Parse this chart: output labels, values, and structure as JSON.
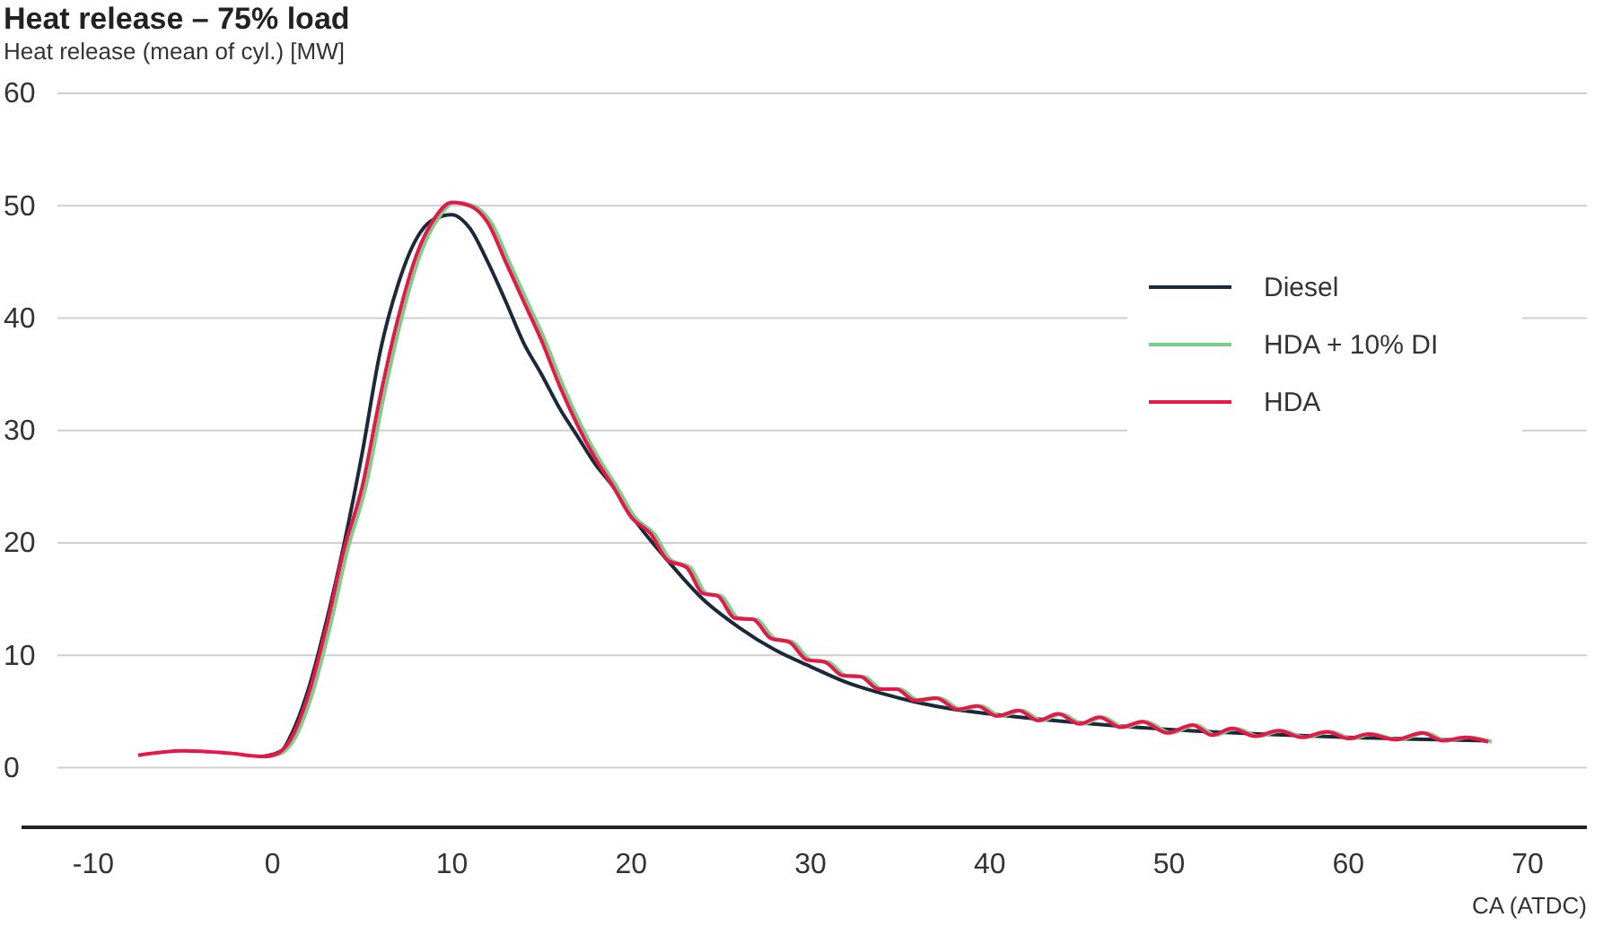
{
  "chart_data": {
    "type": "line",
    "title": "Heat release – 75% load",
    "ylabel": "Heat release (mean of cyl.) [MW]",
    "xlabel": "CA (ATDC)",
    "xlim": [
      -14,
      73.3
    ],
    "xticks": [
      -10,
      0,
      10,
      20,
      30,
      40,
      50,
      60,
      70
    ],
    "ylim": [
      -5.3,
      60
    ],
    "yticks": [
      0,
      10,
      20,
      30,
      40,
      50,
      60
    ],
    "grid": "y",
    "legend": "right",
    "line_style": "solid",
    "marker": "none",
    "series": [
      {
        "name": "Diesel",
        "color": "#1b2a3a",
        "x": [
          -0.5,
          0.5,
          1,
          2,
          3,
          4,
          5,
          6,
          7,
          8,
          9,
          10,
          11,
          12,
          13,
          14,
          15,
          16,
          17,
          18,
          19,
          20,
          22,
          24,
          26,
          28,
          30,
          32,
          34,
          36,
          38,
          40,
          45,
          50,
          55,
          60,
          65,
          67.8
        ],
        "values": [
          1.0,
          1.5,
          2.8,
          7,
          13,
          20,
          28,
          37,
          43,
          47,
          48.8,
          49.2,
          48,
          45,
          41.5,
          37.8,
          35,
          32,
          29.5,
          27,
          25,
          22.5,
          18.5,
          15,
          12.5,
          10.5,
          9,
          7.6,
          6.6,
          5.8,
          5.2,
          4.8,
          4,
          3.4,
          3,
          2.7,
          2.5,
          2.4
        ]
      },
      {
        "name": "HDA + 10% DI",
        "color": "#7dcc8a",
        "x": [
          -0.3,
          0.5,
          1.2,
          2.2,
          3.2,
          4.2,
          5.2,
          6.2,
          7.2,
          8.2,
          9.2,
          10.2,
          11.2,
          12.2,
          13.2,
          14.2,
          15.2,
          16.2,
          17.2,
          18.2,
          19.2,
          20.2,
          21.3,
          22.2,
          23.3,
          24.2,
          25,
          26,
          27,
          28,
          29,
          30,
          31,
          32,
          33,
          34,
          35,
          36,
          37.2,
          38.4,
          39.5,
          40.6,
          41.8,
          42.9,
          44,
          45.2,
          46.3,
          47.5,
          48.7,
          50.1,
          51.5,
          52.6,
          53.7,
          55,
          56.3,
          57.6,
          59,
          60.2,
          61.3,
          62.8,
          64.3,
          65.5,
          66.7,
          68
        ],
        "values": [
          1.0,
          1.3,
          2.5,
          6.5,
          12.5,
          19.5,
          25,
          33,
          40,
          45.5,
          48.8,
          50.3,
          50,
          48.5,
          45,
          41.5,
          38,
          34,
          30.5,
          27.5,
          25,
          22.3,
          20.8,
          18.5,
          17.8,
          15.5,
          15.3,
          13.3,
          13.2,
          11.5,
          11.2,
          9.6,
          9.4,
          8.2,
          8.1,
          7.0,
          7.0,
          6.0,
          6.2,
          5.2,
          5.5,
          4.6,
          5.1,
          4.2,
          4.8,
          3.9,
          4.5,
          3.6,
          4.1,
          3.1,
          3.8,
          2.9,
          3.5,
          2.8,
          3.3,
          2.7,
          3.2,
          2.6,
          3.0,
          2.5,
          3.1,
          2.4,
          2.7,
          2.3
        ]
      },
      {
        "name": "HDA",
        "color": "#e8174a",
        "x": [
          -7.5,
          -5,
          -2.5,
          -0.5,
          0.3,
          1,
          2,
          3,
          4,
          5,
          6,
          7,
          8,
          9,
          10,
          11,
          12,
          13,
          14,
          15,
          16,
          17,
          18,
          19,
          20,
          21.1,
          22,
          23.1,
          24,
          24.8,
          25.8,
          26.8,
          27.8,
          28.8,
          29.8,
          30.8,
          31.8,
          32.8,
          33.8,
          34.8,
          35.8,
          37,
          38.2,
          39.3,
          40.4,
          41.6,
          42.7,
          43.8,
          45,
          46.1,
          47.3,
          48.5,
          49.9,
          51.3,
          52.4,
          53.5,
          54.8,
          56.1,
          57.4,
          58.8,
          60,
          61.1,
          62.6,
          64.1,
          65.3,
          66.5,
          67.8
        ],
        "values": [
          1.1,
          1.5,
          1.3,
          1.0,
          1.3,
          2.5,
          6.5,
          12.5,
          19.5,
          25,
          33,
          40,
          45.5,
          48.8,
          50.3,
          50,
          48.5,
          45,
          41.5,
          38,
          34,
          30.5,
          27.5,
          25,
          22.3,
          20.8,
          18.5,
          17.8,
          15.5,
          15.3,
          13.3,
          13.2,
          11.5,
          11.2,
          9.6,
          9.4,
          8.2,
          8.1,
          7.0,
          7.0,
          6.0,
          6.2,
          5.2,
          5.5,
          4.6,
          5.1,
          4.2,
          4.8,
          3.9,
          4.5,
          3.6,
          4.1,
          3.1,
          3.8,
          2.9,
          3.5,
          2.8,
          3.3,
          2.7,
          3.2,
          2.6,
          3.0,
          2.5,
          3.1,
          2.4,
          2.7,
          2.3
        ]
      }
    ]
  }
}
